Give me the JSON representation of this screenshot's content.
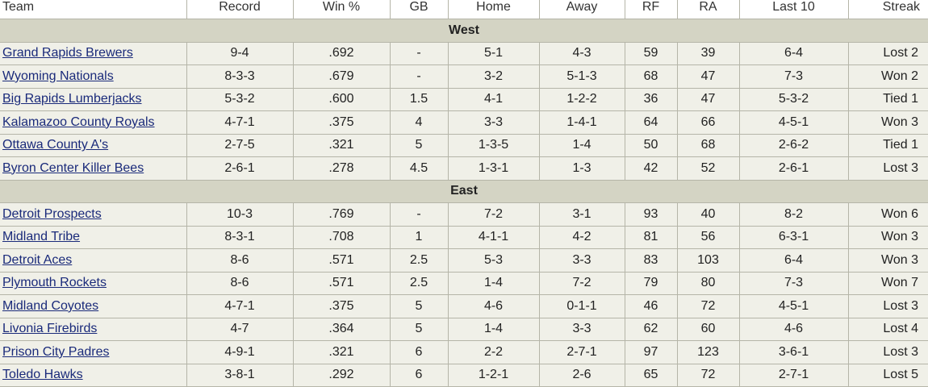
{
  "columns": [
    "Team",
    "Record",
    "Win %",
    "GB",
    "Home",
    "Away",
    "RF",
    "RA",
    "Last 10",
    "Streak"
  ],
  "divisions": [
    {
      "name": "West",
      "teams": [
        [
          "Grand Rapids Brewers",
          "9-4",
          ".692",
          "-",
          "5-1",
          "4-3",
          "59",
          "39",
          "6-4",
          "Lost 2"
        ],
        [
          "Wyoming Nationals",
          "8-3-3",
          ".679",
          "-",
          "3-2",
          "5-1-3",
          "68",
          "47",
          "7-3",
          "Won 2"
        ],
        [
          "Big Rapids Lumberjacks",
          "5-3-2",
          ".600",
          "1.5",
          "4-1",
          "1-2-2",
          "36",
          "47",
          "5-3-2",
          "Tied 1"
        ],
        [
          "Kalamazoo County Royals",
          "4-7-1",
          ".375",
          "4",
          "3-3",
          "1-4-1",
          "64",
          "66",
          "4-5-1",
          "Won 3"
        ],
        [
          "Ottawa County A's",
          "2-7-5",
          ".321",
          "5",
          "1-3-5",
          "1-4",
          "50",
          "68",
          "2-6-2",
          "Tied 1"
        ],
        [
          "Byron Center Killer Bees",
          "2-6-1",
          ".278",
          "4.5",
          "1-3-1",
          "1-3",
          "42",
          "52",
          "2-6-1",
          "Lost 3"
        ]
      ]
    },
    {
      "name": "East",
      "teams": [
        [
          "Detroit Prospects",
          "10-3",
          ".769",
          "-",
          "7-2",
          "3-1",
          "93",
          "40",
          "8-2",
          "Won 6"
        ],
        [
          "Midland Tribe",
          "8-3-1",
          ".708",
          "1",
          "4-1-1",
          "4-2",
          "81",
          "56",
          "6-3-1",
          "Won 3"
        ],
        [
          "Detroit Aces",
          "8-6",
          ".571",
          "2.5",
          "5-3",
          "3-3",
          "83",
          "103",
          "6-4",
          "Won 3"
        ],
        [
          "Plymouth Rockets",
          "8-6",
          ".571",
          "2.5",
          "1-4",
          "7-2",
          "79",
          "80",
          "7-3",
          "Won 7"
        ],
        [
          "Midland Coyotes",
          "4-7-1",
          ".375",
          "5",
          "4-6",
          "0-1-1",
          "46",
          "72",
          "4-5-1",
          "Lost 3"
        ],
        [
          "Livonia Firebirds",
          "4-7",
          ".364",
          "5",
          "1-4",
          "3-3",
          "62",
          "60",
          "4-6",
          "Lost 4"
        ],
        [
          "Prison City Padres",
          "4-9-1",
          ".321",
          "6",
          "2-2",
          "2-7-1",
          "97",
          "123",
          "3-6-1",
          "Lost 3"
        ],
        [
          "Toledo Hawks",
          "3-8-1",
          ".292",
          "6",
          "1-2-1",
          "2-6",
          "65",
          "72",
          "2-7-1",
          "Lost 5"
        ]
      ]
    }
  ]
}
